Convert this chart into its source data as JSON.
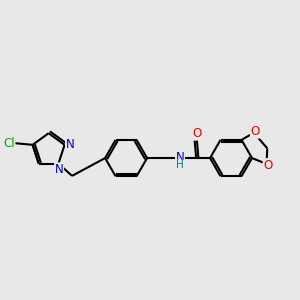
{
  "background_color": "#e8e8e8",
  "atom_colors": {
    "C": "#000000",
    "N": "#0000cc",
    "O": "#ee0000",
    "Cl": "#00aa00",
    "H": "#008080"
  },
  "bond_color": "#000000",
  "bond_width": 1.5
}
